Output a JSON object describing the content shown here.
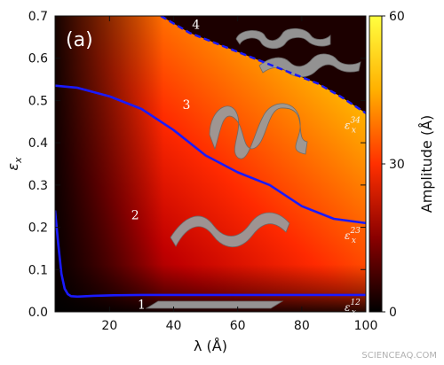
{
  "chart_data": {
    "type": "heatmap",
    "panel_label": "(a)",
    "xlabel": "λ (Å)",
    "ylabel": "εx",
    "xlim": [
      3,
      100
    ],
    "ylim": [
      0,
      0.7
    ],
    "x_ticks": [
      "20",
      "40",
      "60",
      "80",
      "100"
    ],
    "y_ticks": [
      "0.0",
      "0.1",
      "0.2",
      "0.3",
      "0.4",
      "0.5",
      "0.6",
      "0.7"
    ],
    "colorbar": {
      "label": "Amplitude (Å)",
      "range": [
        0,
        60
      ],
      "ticks": [
        "0",
        "30",
        "60"
      ],
      "colors": [
        "#000000",
        "#8a0000",
        "#ff3000",
        "#ffb000",
        "#ffff40"
      ]
    },
    "regions": [
      {
        "label": "1",
        "x": 30,
        "y": 0.018
      },
      {
        "label": "2",
        "x": 28,
        "y": 0.23
      },
      {
        "label": "3",
        "x": 44,
        "y": 0.49
      },
      {
        "label": "4",
        "x": 47,
        "y": 0.68
      }
    ],
    "curves": [
      {
        "name": "ε^12_x",
        "label_base": "ε",
        "label_sup": "12",
        "label_sub": "x",
        "color": "#1a1aff",
        "dashed": false,
        "x": [
          3,
          4,
          5,
          6,
          7,
          8,
          10,
          15,
          20,
          30,
          40,
          50,
          60,
          70,
          80,
          90,
          100
        ],
        "y": [
          0.24,
          0.16,
          0.09,
          0.055,
          0.042,
          0.037,
          0.036,
          0.038,
          0.039,
          0.04,
          0.04,
          0.04,
          0.04,
          0.04,
          0.04,
          0.04,
          0.04
        ]
      },
      {
        "name": "ε^23_x",
        "label_base": "ε",
        "label_sup": "23",
        "label_sub": "x",
        "color": "#1a1aff",
        "dashed": false,
        "x": [
          3,
          10,
          20,
          30,
          40,
          50,
          60,
          70,
          80,
          90,
          100
        ],
        "y": [
          0.535,
          0.53,
          0.51,
          0.48,
          0.43,
          0.37,
          0.33,
          0.3,
          0.25,
          0.22,
          0.21
        ]
      },
      {
        "name": "ε^34_x",
        "label_base": "ε",
        "label_sup": "34",
        "label_sub": "x",
        "color": "#1a1aff",
        "dashed": true,
        "x": [
          36,
          45,
          55,
          65,
          75,
          85,
          92,
          100
        ],
        "y": [
          0.7,
          0.66,
          0.63,
          0.6,
          0.57,
          0.54,
          0.51,
          0.47
        ]
      }
    ]
  },
  "watermark": "SCIENCEAQ.COM"
}
